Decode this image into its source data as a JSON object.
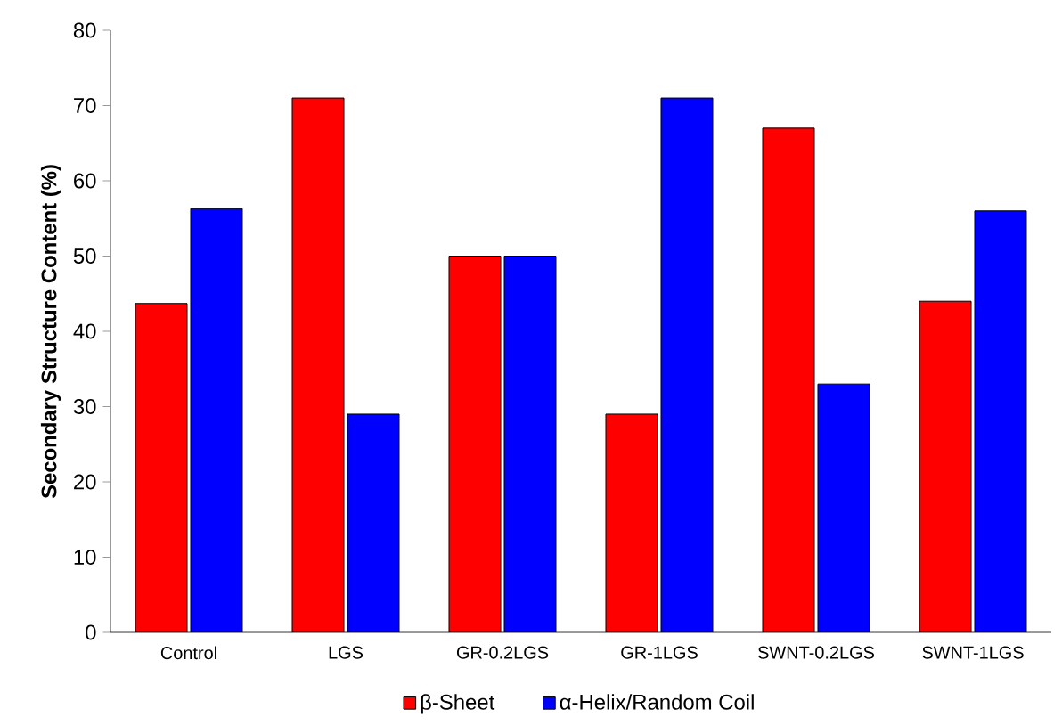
{
  "chart_data": {
    "type": "bar",
    "ylabel": "Secondary Structure  Content (%)",
    "categories": [
      "Control",
      "LGS",
      "GR-0.2LGS",
      "GR-1LGS",
      "SWNT-0.2LGS",
      "SWNT-1LGS"
    ],
    "series": [
      {
        "name": "β-Sheet",
        "color": "#ff0000",
        "values": [
          43.7,
          71,
          50,
          29,
          67,
          44
        ]
      },
      {
        "name": "α-Helix/Random Coil",
        "color": "#0000ff",
        "values": [
          56.3,
          29,
          50,
          71,
          33,
          56
        ]
      }
    ],
    "ylim": [
      0,
      80
    ],
    "yticks": [
      0,
      10,
      20,
      30,
      40,
      50,
      60,
      70,
      80
    ],
    "legend": "bottom"
  }
}
